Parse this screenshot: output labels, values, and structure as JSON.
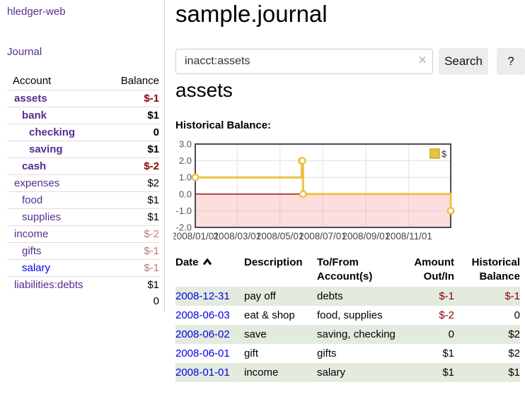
{
  "colors": {
    "link_visited_purple": "#552e91",
    "link_unvisited_blue": "#0000e6",
    "negative_strong": "#8b0000",
    "negative_soft": "#b97c7c",
    "row_highlight_green": "#e3ebdf",
    "chart_line_gold": "#edc240",
    "chart_zero_line_red": "#8b0000",
    "chart_negative_fill_pink": "#f5a0a0",
    "button_gray": "#ececec"
  },
  "sidebar": {
    "app_title": "hledger-web",
    "nav_journal": "Journal",
    "accounts": {
      "header_account": "Account",
      "header_balance": "Balance",
      "rows": [
        {
          "label": "assets",
          "balance": "$-1",
          "indent": 1,
          "bold": true,
          "balance_class": "neg-strong",
          "link": "visited"
        },
        {
          "label": "bank",
          "balance": "$1",
          "indent": 2,
          "bold": true,
          "balance_class": "",
          "link": "visited"
        },
        {
          "label": "checking",
          "balance": "0",
          "indent": 3,
          "bold": true,
          "balance_class": "",
          "link": "visited"
        },
        {
          "label": "saving",
          "balance": "$1",
          "indent": 3,
          "bold": true,
          "balance_class": "",
          "link": "visited"
        },
        {
          "label": "cash",
          "balance": "$-2",
          "indent": 2,
          "bold": true,
          "balance_class": "neg-strong",
          "link": "visited"
        },
        {
          "label": "expenses",
          "balance": "$2",
          "indent": 1,
          "bold": false,
          "balance_class": "",
          "link": "visited"
        },
        {
          "label": "food",
          "balance": "$1",
          "indent": 2,
          "bold": false,
          "balance_class": "",
          "link": "visited"
        },
        {
          "label": "supplies",
          "balance": "$1",
          "indent": 2,
          "bold": false,
          "balance_class": "",
          "link": "visited"
        },
        {
          "label": "income",
          "balance": "$-2",
          "indent": 1,
          "bold": false,
          "balance_class": "neg-soft",
          "link": "visited"
        },
        {
          "label": "gifts",
          "balance": "$-1",
          "indent": 2,
          "bold": false,
          "balance_class": "neg-soft",
          "link": "visited"
        },
        {
          "label": "salary",
          "balance": "$-1",
          "indent": 2,
          "bold": false,
          "balance_class": "neg-soft",
          "link": "unvisited"
        },
        {
          "label": "liabilities:debts",
          "balance": "$1",
          "indent": 1,
          "bold": false,
          "balance_class": "",
          "link": "visited"
        }
      ],
      "total": "0"
    }
  },
  "main": {
    "title": "sample.journal",
    "search": {
      "value": "inacct:assets",
      "clear_icon": "×",
      "button_label": "Search",
      "help_label": "?"
    },
    "account_heading": "assets",
    "chart_section_label": "Historical Balance:"
  },
  "chart_data": {
    "type": "line",
    "step": true,
    "title": "Historical Balance",
    "legend": [
      {
        "label": "$",
        "color": "#edc240"
      }
    ],
    "legend_position": "top-right",
    "grid": true,
    "negative_region_shaded": true,
    "series": [
      {
        "name": "$",
        "color": "#edc240",
        "points": [
          [
            "2008-01-01",
            1
          ],
          [
            "2008-06-01",
            2
          ],
          [
            "2008-06-02",
            2
          ],
          [
            "2008-06-03",
            0
          ],
          [
            "2008-12-31",
            -1
          ]
        ]
      }
    ],
    "x_range": [
      "2008-01-01",
      "2008-12-31"
    ],
    "x_ticks": [
      "2008/01/01",
      "2008/03/01",
      "2008/05/01",
      "2008/07/01",
      "2008/09/01",
      "2008/11/01"
    ],
    "y_ticks": [
      3.0,
      2.0,
      1.0,
      0.0,
      -1.0,
      -2.0
    ],
    "ylim": [
      -2,
      3
    ]
  },
  "transactions": {
    "headers": {
      "date": "Date",
      "description": "Description",
      "accounts": "To/From Account(s)",
      "amount": "Amount Out/In",
      "balance": "Historical Balance"
    },
    "rows": [
      {
        "date": "2008-12-31",
        "description": "pay off",
        "accounts": "debts",
        "amount": "$-1",
        "amount_class": "neg-strong",
        "balance": "$-1",
        "balance_class": "neg-strong",
        "highlight": true
      },
      {
        "date": "2008-06-03",
        "description": "eat & shop",
        "accounts": "food, supplies",
        "amount": "$-2",
        "amount_class": "neg-strong",
        "balance": "0",
        "balance_class": "",
        "highlight": false
      },
      {
        "date": "2008-06-02",
        "description": "save",
        "accounts": "saving, checking",
        "amount": "0",
        "amount_class": "",
        "balance": "$2",
        "balance_class": "",
        "highlight": true
      },
      {
        "date": "2008-06-01",
        "description": "gift",
        "accounts": "gifts",
        "amount": "$1",
        "amount_class": "",
        "balance": "$2",
        "balance_class": "",
        "highlight": false
      },
      {
        "date": "2008-01-01",
        "description": "income",
        "accounts": "salary",
        "amount": "$1",
        "amount_class": "",
        "balance": "$1",
        "balance_class": "",
        "highlight": true
      }
    ]
  }
}
